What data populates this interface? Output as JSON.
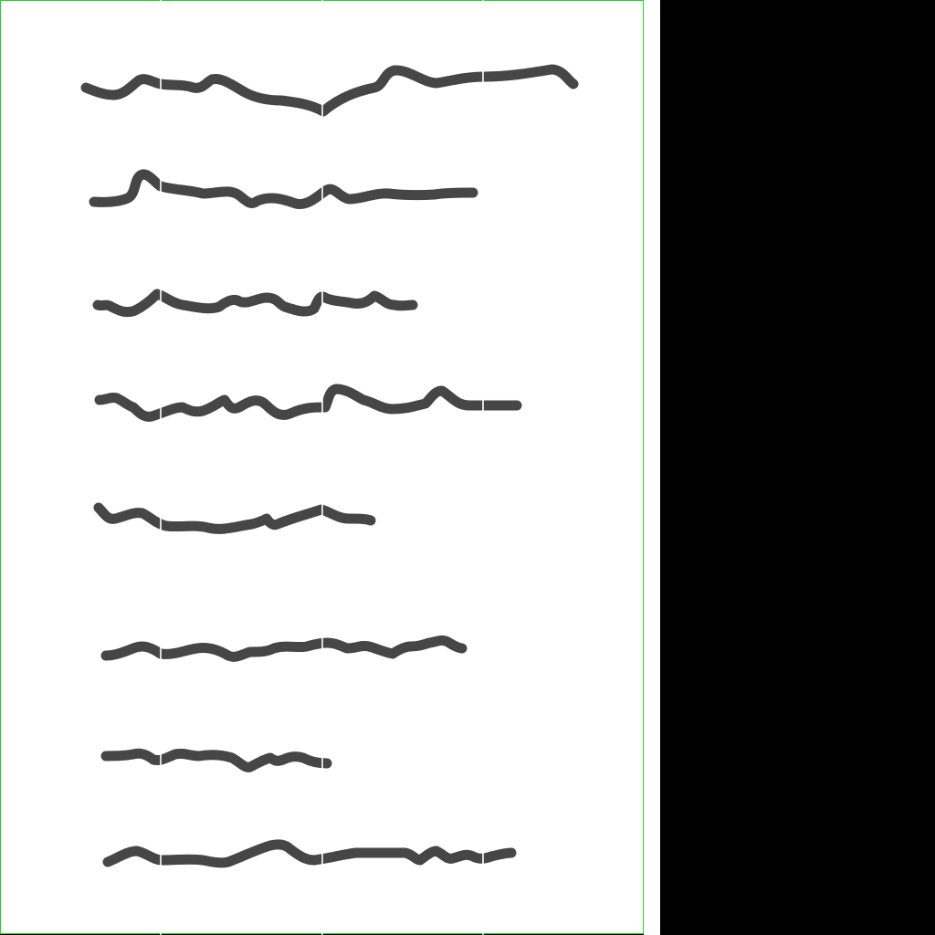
{
  "colors": {
    "page_background": "#ffffff",
    "page_border": "#22d12a",
    "ink": "#464646",
    "outer_background": "#000000"
  },
  "scribble_line_count": 8
}
